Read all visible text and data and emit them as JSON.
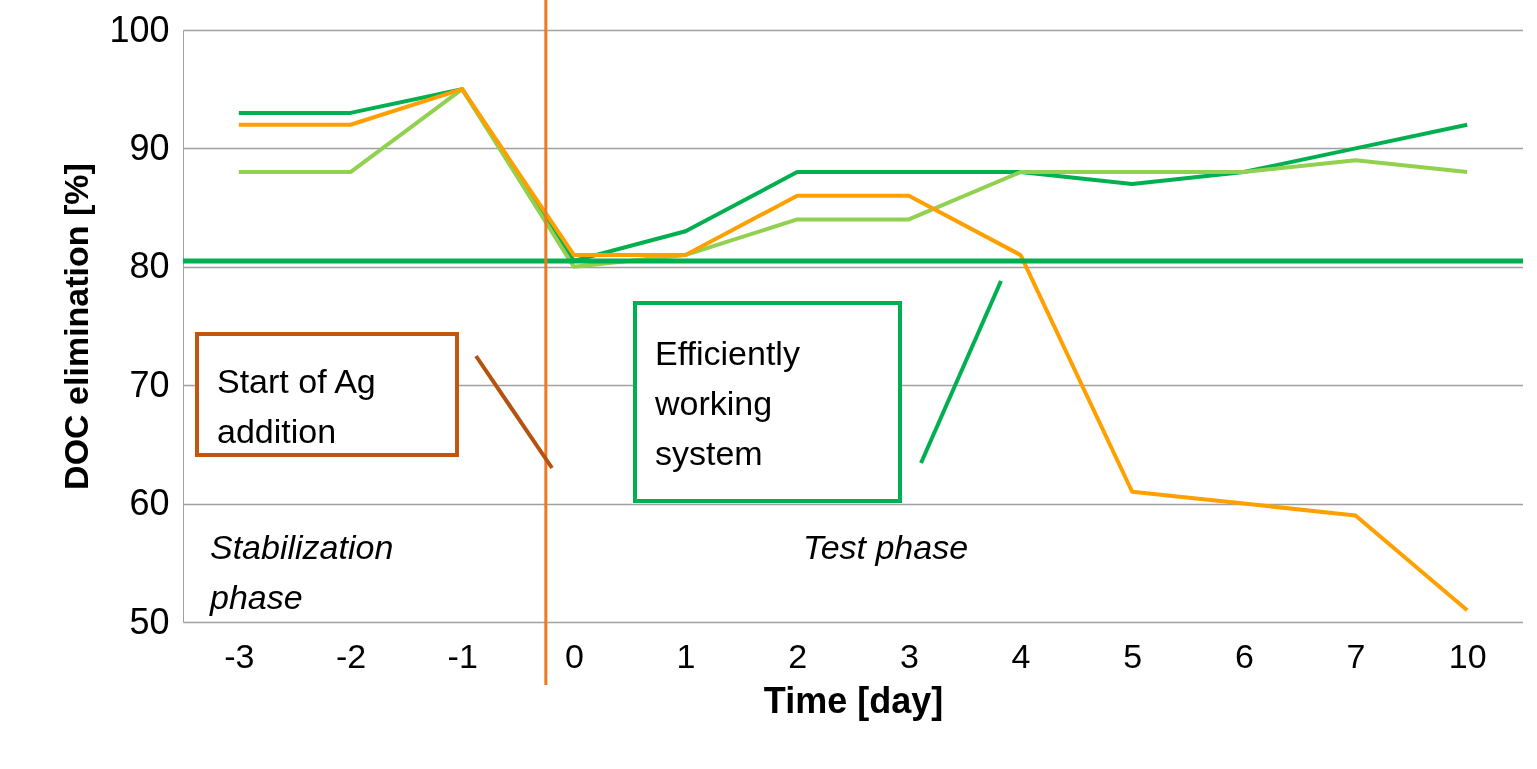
{
  "chart_data": {
    "type": "line",
    "xlabel": "Time [day]",
    "ylabel": "DOC elimination [%]",
    "categories": [
      "-3",
      "-2",
      "-1",
      "0",
      "1",
      "2",
      "3",
      "4",
      "5",
      "6",
      "7",
      "10"
    ],
    "series": [
      {
        "color": "#00b050",
        "values": [
          93,
          93,
          95,
          80.5,
          83,
          88,
          88,
          88,
          87,
          88,
          90,
          92
        ]
      },
      {
        "color": "#92d050",
        "values": [
          88,
          88,
          95,
          80,
          81,
          84,
          84,
          88,
          88,
          88,
          89,
          88
        ]
      },
      {
        "color": "#ffa000",
        "values": [
          92,
          92,
          95,
          81,
          81,
          86,
          86,
          81,
          61,
          60,
          59,
          51
        ]
      }
    ],
    "ylim": [
      50,
      100
    ],
    "yticks": [
      50,
      60,
      70,
      80,
      90,
      100
    ],
    "grid": "y",
    "ref_lines": [
      {
        "axis": "y",
        "value": 80.5,
        "color": "#00b050"
      },
      {
        "axis": "x",
        "value": "0",
        "color": "#f07820"
      }
    ],
    "annotations": [
      "Start of Ag addition",
      "Efficiently working system",
      "Stabilization phase",
      "Test phase"
    ]
  }
}
